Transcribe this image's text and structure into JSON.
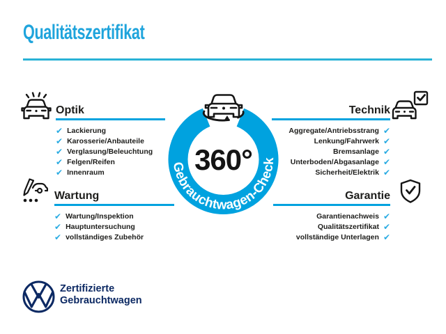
{
  "title": "Qualitätszertifikat",
  "badge": {
    "center_label": "360°",
    "ring_label": "Gebrauchtwagen-Check"
  },
  "sections": [
    {
      "id": "optik",
      "heading": "Optik",
      "items": [
        "Lackierung",
        "Karosserie/Anbauteile",
        "Verglasung/Beleuchtung",
        "Felgen/Reifen",
        "Innenraum"
      ]
    },
    {
      "id": "technik",
      "heading": "Technik",
      "items": [
        "Aggregate/Antriebsstrang",
        "Lenkung/Fahrwerk",
        "Bremsanlage",
        "Unterboden/Abgasanlage",
        "Sicherheit/Elektrik"
      ]
    },
    {
      "id": "wartung",
      "heading": "Wartung",
      "items": [
        "Wartung/Inspektion",
        "Hauptuntersuchung",
        "vollständiges Zubehör"
      ]
    },
    {
      "id": "garantie",
      "heading": "Garantie",
      "items": [
        "Garantienachweis",
        "Qualitätszertifikat",
        "vollständige Unterlagen"
      ]
    }
  ],
  "footer": {
    "brand_line1": "Zertifizierte",
    "brand_line2": "Gebrauchtwagen"
  },
  "icons": {
    "check_glyph": "✔",
    "optik": "car-front-with-light-rays",
    "wartung": "pen-checklist-with-car",
    "technik": "car-front-with-checkbox",
    "garantie": "shield-with-checkmark",
    "center": "rotating-car-360"
  },
  "colors": {
    "accent": "#00A2DF",
    "titleBlue": "#1FA4DC",
    "separator": "#29B2D6",
    "check": "#29ABE2",
    "text": "#1D1D1B",
    "navy": "#0C2963"
  }
}
